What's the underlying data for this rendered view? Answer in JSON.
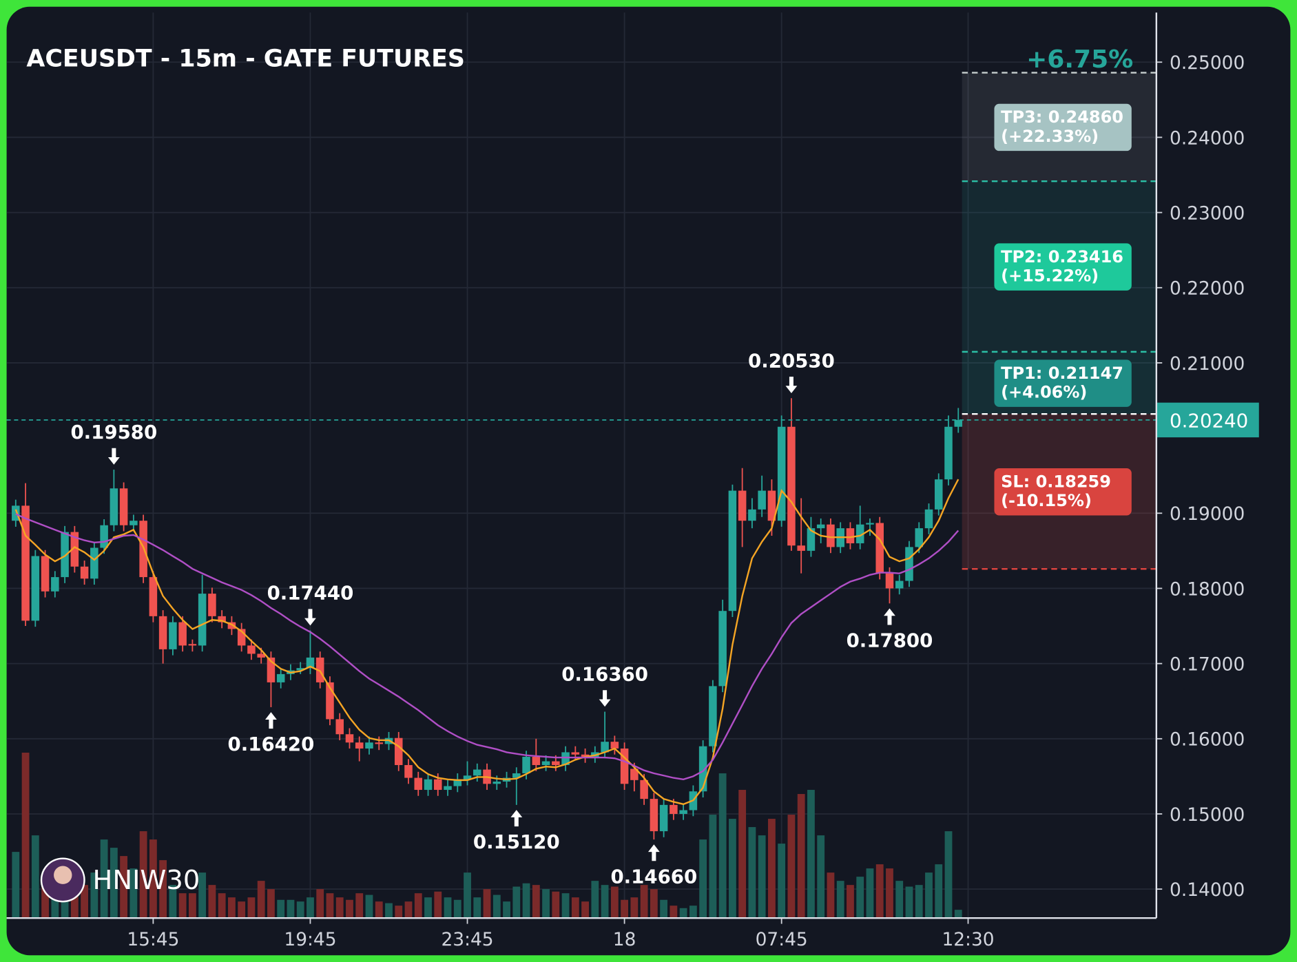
{
  "chart_data": {
    "type": "candlestick",
    "title": "ACEUSDT - 15m - GATE FUTURES",
    "watermark": "HNIW30",
    "ylim": [
      0.13615,
      0.2566
    ],
    "yticks": [
      {
        "value": 0.14,
        "label": "0.14000"
      },
      {
        "value": 0.15,
        "label": "0.15000"
      },
      {
        "value": 0.16,
        "label": "0.16000"
      },
      {
        "value": 0.17,
        "label": "0.17000"
      },
      {
        "value": 0.18,
        "label": "0.18000"
      },
      {
        "value": 0.19,
        "label": "0.19000"
      },
      {
        "value": 0.21,
        "label": "0.21000"
      },
      {
        "value": 0.22,
        "label": "0.22000"
      },
      {
        "value": 0.23,
        "label": "0.23000"
      },
      {
        "value": 0.24,
        "label": "0.24000"
      },
      {
        "value": 0.25,
        "label": "0.25000"
      }
    ],
    "xticks": [
      {
        "value": 14,
        "label": "15:45"
      },
      {
        "value": 30,
        "label": "19:45"
      },
      {
        "value": 46,
        "label": "23:45"
      },
      {
        "value": 62,
        "label": "18"
      },
      {
        "value": 78,
        "label": "07:45"
      },
      {
        "value": 97,
        "label": "12:30"
      }
    ],
    "grid": true,
    "up_color": "#26a69a",
    "down_color": "#ef5350",
    "volume_up_color": "#1d5e58",
    "volume_down_color": "#7b2a2a",
    "candles": [
      [
        0.189,
        0.1918,
        0.1882,
        0.191
      ],
      [
        0.191,
        0.194,
        0.175,
        0.1757
      ],
      [
        0.1757,
        0.1851,
        0.1749,
        0.1843
      ],
      [
        0.1843,
        0.1851,
        0.1788,
        0.1796
      ],
      [
        0.1796,
        0.1823,
        0.1788,
        0.1815
      ],
      [
        0.1815,
        0.1883,
        0.1807,
        0.1875
      ],
      [
        0.1875,
        0.1883,
        0.1821,
        0.1829
      ],
      [
        0.1829,
        0.1837,
        0.1805,
        0.1813
      ],
      [
        0.1813,
        0.1862,
        0.1805,
        0.1854
      ],
      [
        0.1854,
        0.1892,
        0.1846,
        0.1884
      ],
      [
        0.1884,
        0.1958,
        0.1876,
        0.1933
      ],
      [
        0.1933,
        0.1941,
        0.1876,
        0.1884
      ],
      [
        0.1884,
        0.1898,
        0.1876,
        0.189
      ],
      [
        0.189,
        0.1898,
        0.1807,
        0.1815
      ],
      [
        0.1815,
        0.1823,
        0.1755,
        0.1763
      ],
      [
        0.1763,
        0.1771,
        0.17,
        0.1719
      ],
      [
        0.1719,
        0.1763,
        0.1711,
        0.1755
      ],
      [
        0.1755,
        0.1763,
        0.1716,
        0.1724
      ],
      [
        0.1726,
        0.1732,
        0.1716,
        0.1724
      ],
      [
        0.1724,
        0.1818,
        0.1716,
        0.1793
      ],
      [
        0.1793,
        0.1801,
        0.1755,
        0.1763
      ],
      [
        0.1763,
        0.1771,
        0.1747,
        0.1755
      ],
      [
        0.1755,
        0.1763,
        0.1738,
        0.1746
      ],
      [
        0.1746,
        0.1754,
        0.1716,
        0.1724
      ],
      [
        0.1724,
        0.1732,
        0.1705,
        0.1713
      ],
      [
        0.1713,
        0.1721,
        0.17,
        0.1708
      ],
      [
        0.1708,
        0.1716,
        0.1642,
        0.1675
      ],
      [
        0.1675,
        0.1694,
        0.1667,
        0.1686
      ],
      [
        0.1686,
        0.1699,
        0.1678,
        0.1691
      ],
      [
        0.1691,
        0.1702,
        0.1686,
        0.1694
      ],
      [
        0.1694,
        0.1744,
        0.1686,
        0.1708
      ],
      [
        0.1708,
        0.1716,
        0.1667,
        0.1675
      ],
      [
        0.1675,
        0.1683,
        0.1618,
        0.1626
      ],
      [
        0.1626,
        0.1634,
        0.1598,
        0.1606
      ],
      [
        0.1606,
        0.1614,
        0.1587,
        0.1595
      ],
      [
        0.1595,
        0.1603,
        0.157,
        0.1587
      ],
      [
        0.1587,
        0.1603,
        0.1579,
        0.1595
      ],
      [
        0.1595,
        0.1603,
        0.1585,
        0.1593
      ],
      [
        0.1593,
        0.1609,
        0.1585,
        0.1601
      ],
      [
        0.1601,
        0.1609,
        0.1557,
        0.1565
      ],
      [
        0.1565,
        0.1573,
        0.154,
        0.1548
      ],
      [
        0.1548,
        0.1556,
        0.1524,
        0.1532
      ],
      [
        0.1532,
        0.1554,
        0.1524,
        0.1546
      ],
      [
        0.1546,
        0.1554,
        0.1524,
        0.1532
      ],
      [
        0.1532,
        0.1545,
        0.1524,
        0.1537
      ],
      [
        0.1537,
        0.1554,
        0.1529,
        0.1546
      ],
      [
        0.1546,
        0.157,
        0.1538,
        0.1551
      ],
      [
        0.1551,
        0.1567,
        0.1543,
        0.1559
      ],
      [
        0.1559,
        0.1567,
        0.1532,
        0.154
      ],
      [
        0.154,
        0.1551,
        0.1532,
        0.1543
      ],
      [
        0.1543,
        0.1556,
        0.1535,
        0.1548
      ],
      [
        0.1548,
        0.1562,
        0.1512,
        0.1554
      ],
      [
        0.1554,
        0.1584,
        0.1546,
        0.1576
      ],
      [
        0.1576,
        0.16,
        0.1557,
        0.1565
      ],
      [
        0.1565,
        0.1578,
        0.1557,
        0.157
      ],
      [
        0.157,
        0.1578,
        0.1557,
        0.1565
      ],
      [
        0.1565,
        0.159,
        0.1557,
        0.1582
      ],
      [
        0.1582,
        0.159,
        0.1571,
        0.1579
      ],
      [
        0.1579,
        0.1587,
        0.1568,
        0.1576
      ],
      [
        0.1576,
        0.159,
        0.1568,
        0.1582
      ],
      [
        0.1582,
        0.1636,
        0.1574,
        0.1596
      ],
      [
        0.1596,
        0.1604,
        0.1579,
        0.1587
      ],
      [
        0.1587,
        0.1595,
        0.1532,
        0.154
      ],
      [
        0.156,
        0.1568,
        0.153,
        0.1545
      ],
      [
        0.1545,
        0.1553,
        0.1512,
        0.152
      ],
      [
        0.152,
        0.1528,
        0.1466,
        0.1477
      ],
      [
        0.1477,
        0.152,
        0.1469,
        0.1512
      ],
      [
        0.1512,
        0.152,
        0.1492,
        0.15
      ],
      [
        0.15,
        0.1513,
        0.1492,
        0.1505
      ],
      [
        0.1505,
        0.1538,
        0.1497,
        0.153
      ],
      [
        0.153,
        0.1598,
        0.1522,
        0.159
      ],
      [
        0.159,
        0.1678,
        0.1582,
        0.167
      ],
      [
        0.167,
        0.1785,
        0.1662,
        0.177
      ],
      [
        0.177,
        0.1938,
        0.1762,
        0.193
      ],
      [
        0.193,
        0.196,
        0.1855,
        0.189
      ],
      [
        0.189,
        0.192,
        0.188,
        0.1905
      ],
      [
        0.1905,
        0.195,
        0.1895,
        0.193
      ],
      [
        0.193,
        0.1945,
        0.187,
        0.189
      ],
      [
        0.189,
        0.203,
        0.1882,
        0.2015
      ],
      [
        0.2015,
        0.2053,
        0.185,
        0.1857
      ],
      [
        0.1857,
        0.192,
        0.182,
        0.185
      ],
      [
        0.185,
        0.1895,
        0.1842,
        0.188
      ],
      [
        0.188,
        0.1893,
        0.186,
        0.1885
      ],
      [
        0.1885,
        0.1893,
        0.1847,
        0.1855
      ],
      [
        0.1855,
        0.1888,
        0.1847,
        0.188
      ],
      [
        0.188,
        0.1888,
        0.1852,
        0.186
      ],
      [
        0.186,
        0.191,
        0.1852,
        0.1885
      ],
      [
        0.1885,
        0.1893,
        0.187,
        0.1887
      ],
      [
        0.1887,
        0.1895,
        0.1812,
        0.182
      ],
      [
        0.182,
        0.1828,
        0.178,
        0.18
      ],
      [
        0.18,
        0.1818,
        0.1792,
        0.181
      ],
      [
        0.181,
        0.1863,
        0.1802,
        0.1855
      ],
      [
        0.1855,
        0.1888,
        0.1847,
        0.188
      ],
      [
        0.188,
        0.1913,
        0.1872,
        0.1905
      ],
      [
        0.1905,
        0.1953,
        0.1897,
        0.1945
      ],
      [
        0.1945,
        0.203,
        0.1937,
        0.2015
      ],
      [
        0.2015,
        0.204,
        0.2007,
        0.2024
      ]
    ],
    "volume": [
      80,
      200,
      100,
      40,
      30,
      50,
      60,
      40,
      55,
      95,
      85,
      75,
      60,
      105,
      95,
      70,
      40,
      30,
      30,
      55,
      40,
      30,
      25,
      20,
      25,
      45,
      35,
      22,
      22,
      20,
      25,
      35,
      30,
      25,
      22,
      30,
      28,
      20,
      18,
      15,
      20,
      30,
      25,
      32,
      25,
      22,
      55,
      25,
      35,
      28,
      20,
      38,
      42,
      40,
      35,
      32,
      30,
      25,
      20,
      45,
      40,
      38,
      22,
      25,
      40,
      35,
      22,
      15,
      12,
      15,
      95,
      125,
      175,
      120,
      155,
      110,
      100,
      120,
      90,
      125,
      150,
      155,
      100,
      55,
      45,
      40,
      50,
      60,
      65,
      60,
      45,
      38,
      40,
      55,
      65,
      105,
      10
    ],
    "lines": [
      {
        "color": "#f5a524",
        "values": [
          0.1905,
          0.187,
          0.1858,
          0.1845,
          0.1836,
          0.1843,
          0.1855,
          0.1848,
          0.1838,
          0.185,
          0.1868,
          0.1872,
          0.1878,
          0.1855,
          0.182,
          0.179,
          0.1773,
          0.1758,
          0.1746,
          0.1752,
          0.1758,
          0.1757,
          0.1752,
          0.1743,
          0.173,
          0.1718,
          0.1703,
          0.1693,
          0.1688,
          0.169,
          0.1696,
          0.169,
          0.1668,
          0.1648,
          0.1628,
          0.1612,
          0.1601,
          0.1598,
          0.1598,
          0.159,
          0.1578,
          0.1562,
          0.1553,
          0.1548,
          0.1546,
          0.1545,
          0.1545,
          0.1549,
          0.1549,
          0.1547,
          0.1546,
          0.1547,
          0.1553,
          0.156,
          0.1563,
          0.1562,
          0.1566,
          0.1572,
          0.1576,
          0.1578,
          0.1582,
          0.1587,
          0.1575,
          0.1562,
          0.1548,
          0.153,
          0.152,
          0.1516,
          0.1513,
          0.1518,
          0.1535,
          0.1575,
          0.164,
          0.1725,
          0.179,
          0.184,
          0.1862,
          0.188,
          0.193,
          0.1915,
          0.1895,
          0.1877,
          0.187,
          0.1868,
          0.1868,
          0.1868,
          0.187,
          0.1878,
          0.1865,
          0.1842,
          0.1836,
          0.184,
          0.1852,
          0.1868,
          0.189,
          0.192,
          0.1945
        ]
      },
      {
        "color": "#b04fc6",
        "values": [
          0.1899,
          0.1893,
          0.1888,
          0.1883,
          0.1878,
          0.1873,
          0.1868,
          0.1864,
          0.1861,
          0.1862,
          0.1866,
          0.187,
          0.1871,
          0.1865,
          0.1858,
          0.1851,
          0.1843,
          0.1835,
          0.1826,
          0.182,
          0.1814,
          0.1808,
          0.1803,
          0.1798,
          0.1791,
          0.1783,
          0.1774,
          0.1766,
          0.1757,
          0.1749,
          0.1742,
          0.1733,
          0.1723,
          0.1712,
          0.1701,
          0.169,
          0.168,
          0.1672,
          0.1664,
          0.1656,
          0.1647,
          0.1638,
          0.1628,
          0.1618,
          0.161,
          0.1603,
          0.1597,
          0.1592,
          0.1589,
          0.1586,
          0.1582,
          0.158,
          0.1578,
          0.1577,
          0.1576,
          0.1575,
          0.1575,
          0.1575,
          0.1575,
          0.1575,
          0.1575,
          0.1574,
          0.157,
          0.1564,
          0.1558,
          0.1554,
          0.1551,
          0.1548,
          0.1546,
          0.155,
          0.1557,
          0.1572,
          0.1595,
          0.162,
          0.1645,
          0.167,
          0.1693,
          0.1713,
          0.1735,
          0.1754,
          0.1766,
          0.1775,
          0.1784,
          0.1793,
          0.1802,
          0.1809,
          0.1813,
          0.1818,
          0.1821,
          0.1821,
          0.182,
          0.1825,
          0.1832,
          0.184,
          0.185,
          0.1862,
          0.1877
        ]
      }
    ],
    "annotations": [
      {
        "label": "0.19580",
        "value": 0.1958,
        "at": 10,
        "side": "high"
      },
      {
        "label": "0.16420",
        "value": 0.1642,
        "at": 26,
        "side": "low"
      },
      {
        "label": "0.17440",
        "value": 0.1744,
        "at": 30,
        "side": "high"
      },
      {
        "label": "0.15120",
        "value": 0.1512,
        "at": 51,
        "side": "low"
      },
      {
        "label": "0.16360",
        "value": 0.1636,
        "at": 60,
        "side": "high"
      },
      {
        "label": "0.14660",
        "value": 0.1466,
        "at": 65,
        "side": "low"
      },
      {
        "label": "0.20530",
        "value": 0.2053,
        "at": 79,
        "side": "high"
      },
      {
        "label": "0.17800",
        "value": 0.178,
        "at": 89,
        "side": "low"
      }
    ],
    "trade": {
      "change": "+6.75%",
      "entry": 0.2032,
      "current": {
        "value": 0.2024,
        "label": "0.20240"
      },
      "targets": [
        {
          "name": "TP3: 0.24860",
          "note": "(+22.33%)",
          "value": 0.2486,
          "color": "#a6c3c3",
          "zone": "rgba(255,255,255,0.08)",
          "line": "#c8d0d0"
        },
        {
          "name": "TP2: 0.23416",
          "note": "(+15.22%)",
          "value": 0.23416,
          "color": "#1ec99b",
          "zone": "rgba(38,166,154,0.13)",
          "line": "#2bc0a6"
        },
        {
          "name": "TP1: 0.21147",
          "note": "(+4.06%)",
          "value": 0.21147,
          "color": "#1f8e86",
          "zone": "rgba(38,166,154,0.16)",
          "line": "#2bc0a6"
        }
      ],
      "stop": {
        "name": "SL: 0.18259",
        "note": "(-10.15%)",
        "value": 0.18259,
        "color": "#d9443f",
        "zone": "rgba(239,83,80,0.17)",
        "line": "#e0443f"
      }
    }
  }
}
